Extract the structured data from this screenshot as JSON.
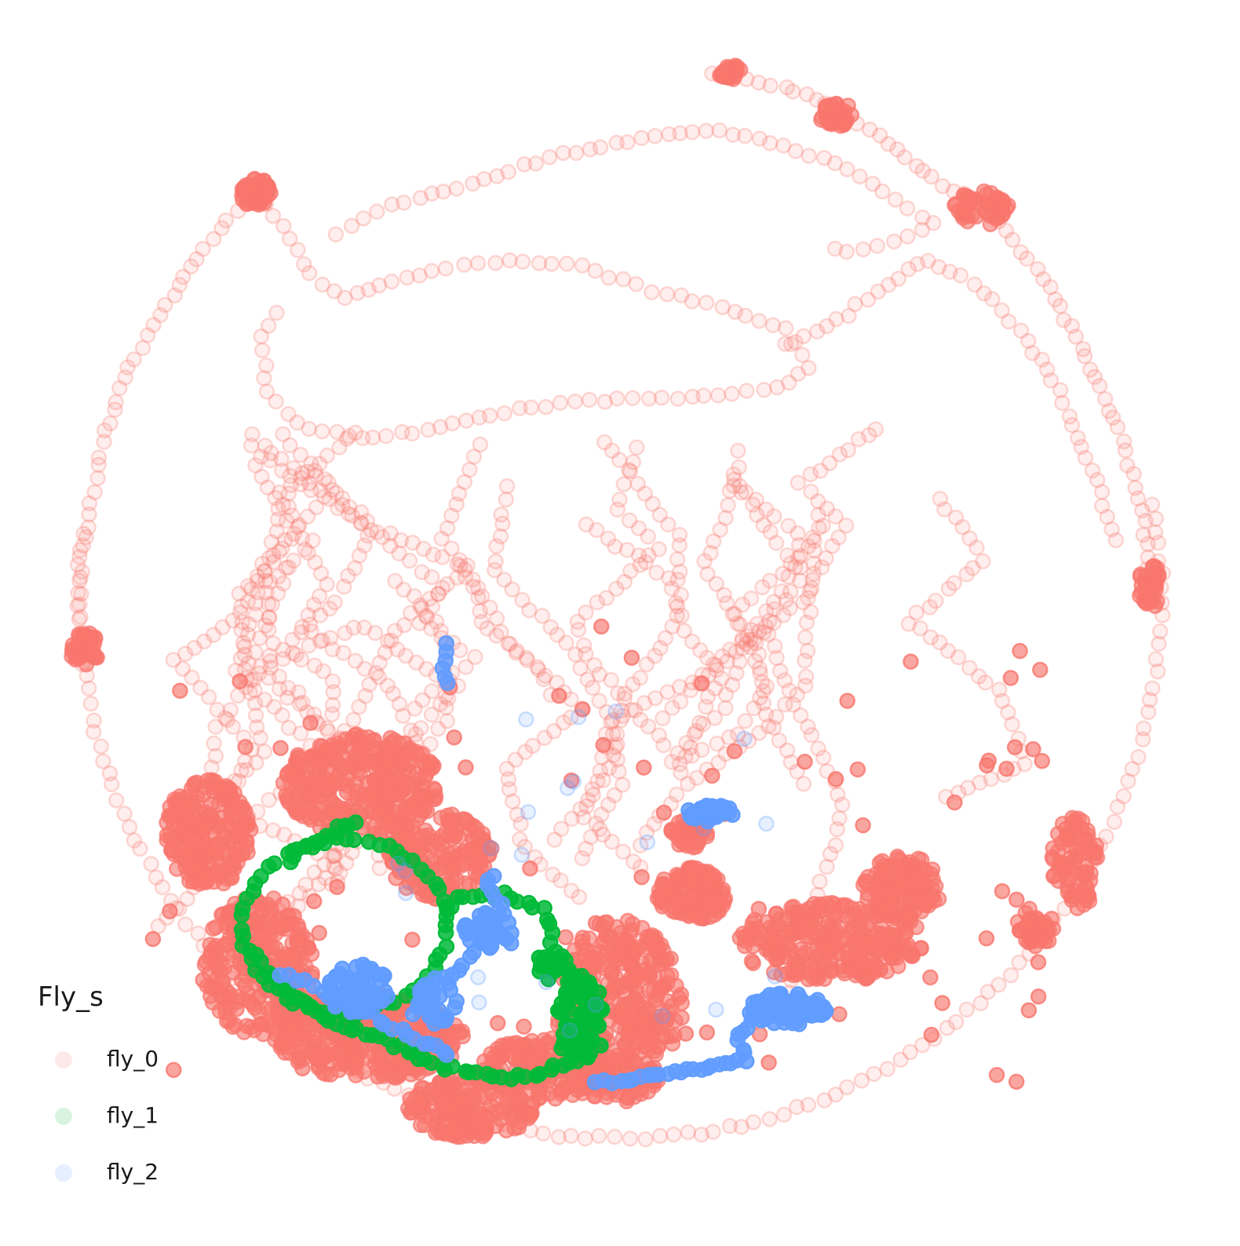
{
  "chart_data": {
    "type": "scatter",
    "legend": {
      "title": "Fly_s",
      "position": "bottom-left"
    },
    "axes_visible": false,
    "grid": false,
    "series": [
      {
        "name": "fly_0",
        "color": "#F8766D"
      },
      {
        "name": "fly_1",
        "color": "#00BA38"
      },
      {
        "name": "fly_2",
        "color": "#619CFF"
      }
    ]
  }
}
